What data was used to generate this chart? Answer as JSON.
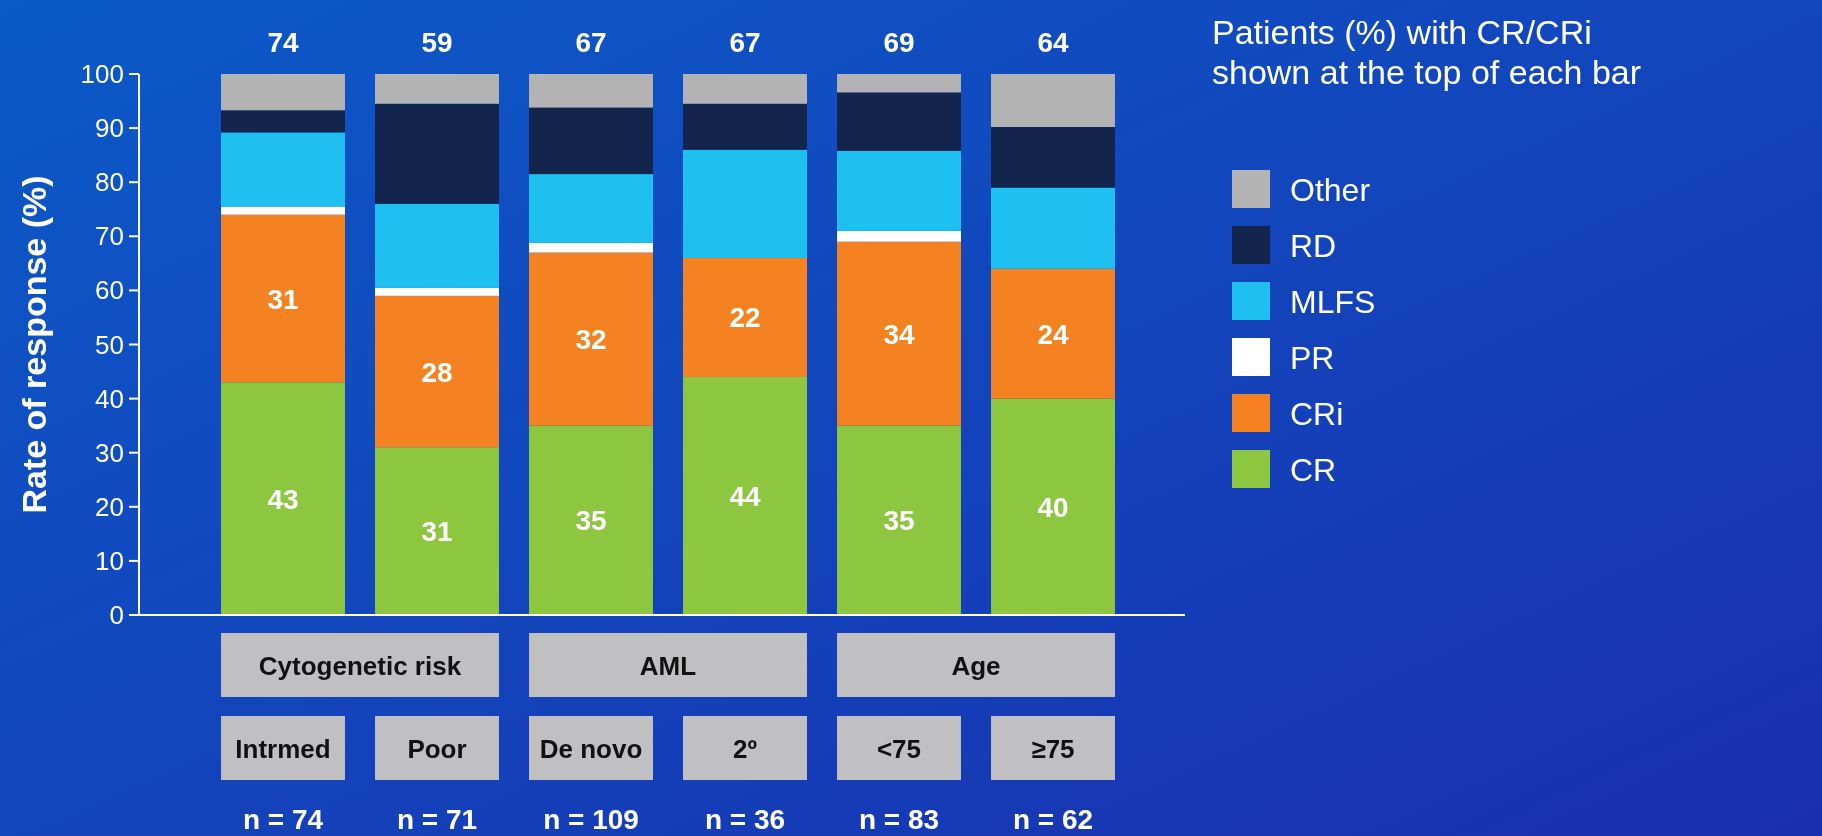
{
  "chart_data": {
    "type": "bar",
    "stacked": true,
    "ylabel": "Rate of response (%)",
    "categories": [
      "Intrmed",
      "Poor",
      "De novo",
      "2º",
      "<75",
      "≥75"
    ],
    "ylim": [
      0,
      100
    ],
    "yticks": [
      0,
      10,
      20,
      30,
      40,
      50,
      60,
      70,
      80,
      90,
      100
    ],
    "legend": "right",
    "series": [
      {
        "name": "CR",
        "color": "#8dc63f",
        "values": [
          43,
          31,
          35,
          44,
          35,
          40
        ],
        "value_labels": [
          "43",
          "31",
          "35",
          "44",
          "35",
          "40"
        ]
      },
      {
        "name": "CRi",
        "color": "#f58220",
        "values": [
          31,
          28,
          32,
          22,
          34,
          24
        ],
        "value_labels": [
          "31",
          "28",
          "32",
          "22",
          "34",
          "24"
        ]
      },
      {
        "name": "PR",
        "color": "#ffffff",
        "values": [
          1.5,
          1.5,
          1.8,
          0,
          2,
          0
        ]
      },
      {
        "name": "MLFS",
        "color": "#1ec0f0",
        "values": [
          13.7,
          15.5,
          12.7,
          20,
          14.8,
          15
        ]
      },
      {
        "name": "RD",
        "color": "#13244d",
        "values": [
          4.1,
          18.5,
          12.3,
          8.5,
          10.8,
          11.2
        ]
      },
      {
        "name": "Other",
        "color": "#b3b3b3",
        "values": [
          6.7,
          5.5,
          6.2,
          5.5,
          3.4,
          9.8
        ]
      }
    ],
    "annotations": [
      "Patients (%) with CR/CRi\nshown at the top of each bar",
      "Cytogenetic risk",
      "AML",
      "Age",
      "74",
      "59",
      "67",
      "67",
      "69",
      "64",
      "n = 74",
      "n = 71",
      "n = 109",
      "n = 36",
      "n = 83",
      "n = 62"
    ]
  }
}
